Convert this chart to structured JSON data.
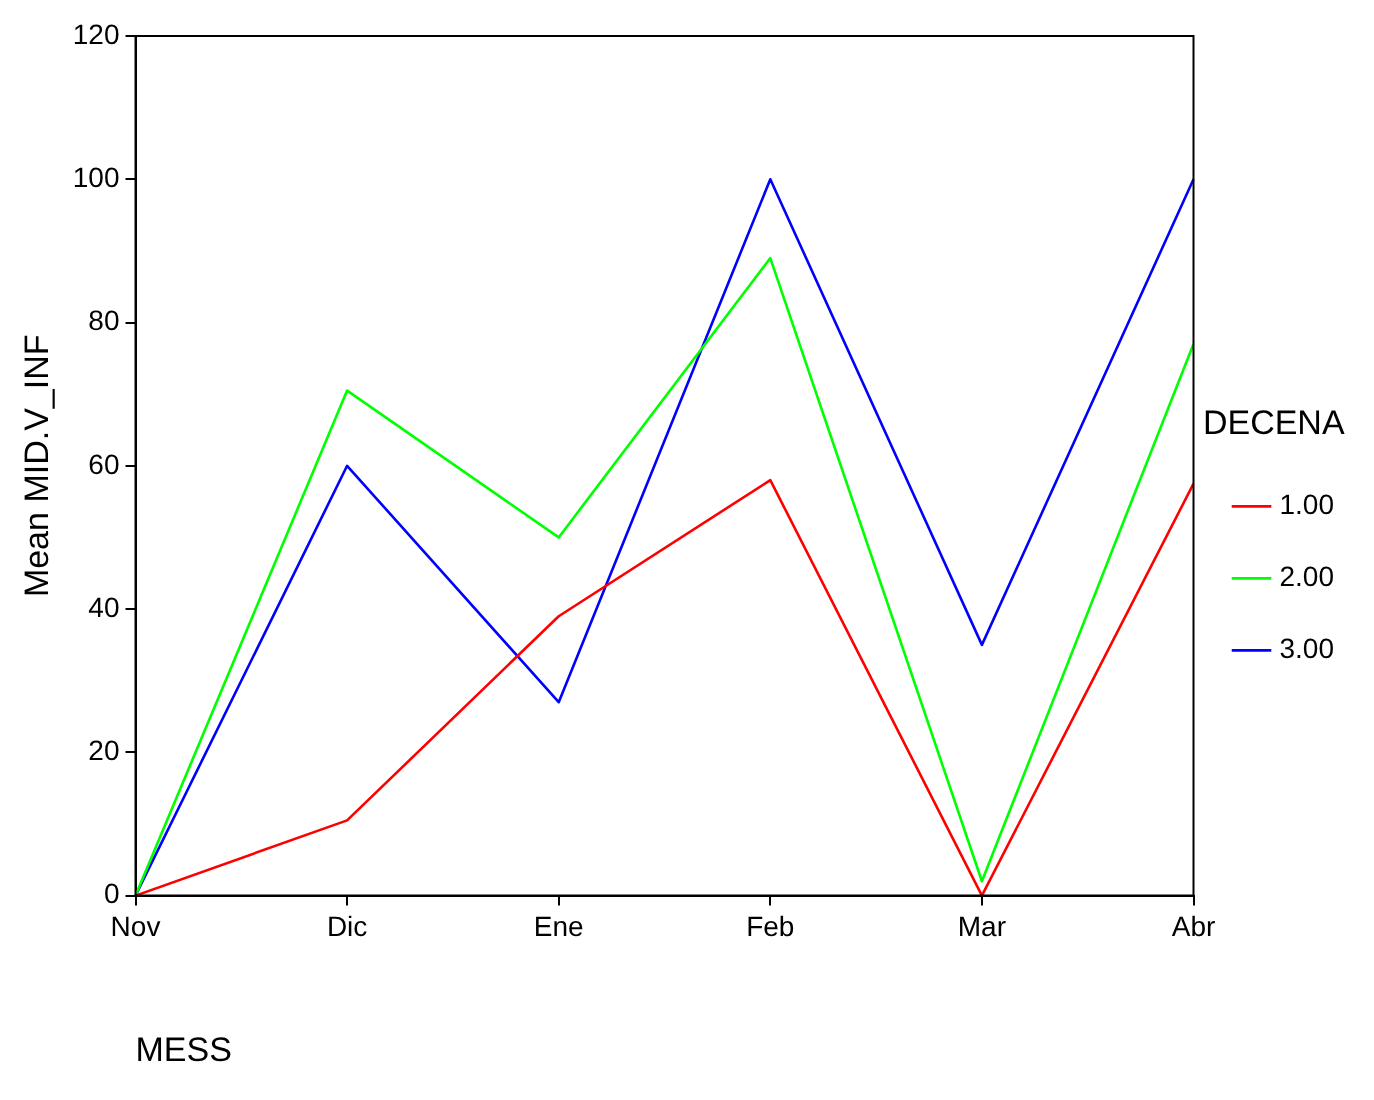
{
  "chart_data": {
    "type": "line",
    "xlabel": "MESS",
    "ylabel": "Mean MID.V_INF",
    "legend_title": "DECENA",
    "categories": [
      "Nov",
      "Dic",
      "Ene",
      "Feb",
      "Mar",
      "Abr"
    ],
    "series": [
      {
        "name": "1.00",
        "color": "#ff0000",
        "values": [
          0,
          10.5,
          39,
          58,
          0,
          57.5
        ]
      },
      {
        "name": "2.00",
        "color": "#00ff00",
        "values": [
          0,
          70.5,
          50,
          89,
          2,
          77
        ]
      },
      {
        "name": "3.00",
        "color": "#0000ff",
        "values": [
          0,
          60,
          27,
          100,
          35,
          100
        ]
      }
    ],
    "ylim": [
      0,
      120
    ],
    "yticks": [
      0,
      20,
      40,
      60,
      80,
      100,
      120
    ],
    "grid": false,
    "legend": "right",
    "marker": "none",
    "line_style": "solid"
  }
}
